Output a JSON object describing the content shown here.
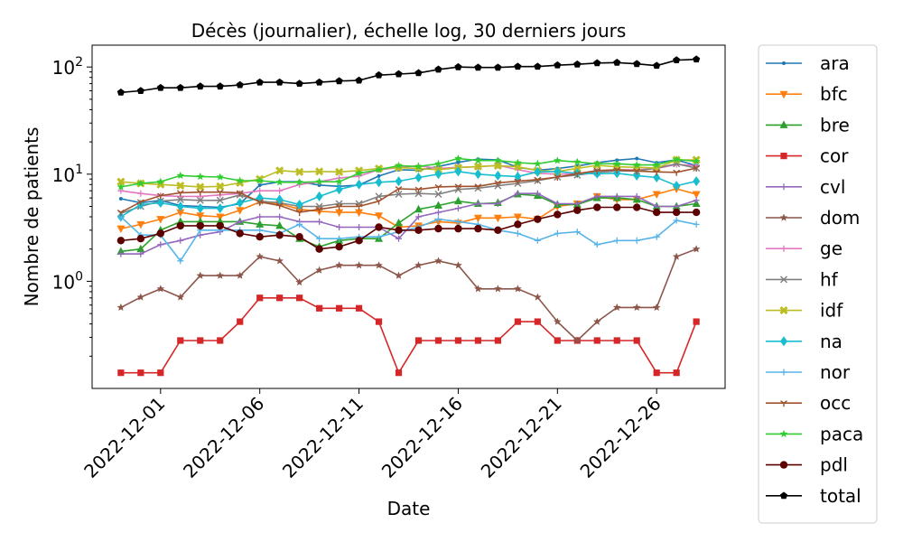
{
  "chart_data": {
    "type": "line",
    "title": "Décès (journalier), échelle log, 30 derniers jours",
    "xlabel": "Date",
    "ylabel": "Nombre de patients",
    "yscale": "log",
    "ylim": [
      0.1,
      160
    ],
    "y_ticks": [
      {
        "value": 1,
        "base": "10",
        "exp": "0"
      },
      {
        "value": 10,
        "base": "10",
        "exp": "1"
      },
      {
        "value": 100,
        "base": "10",
        "exp": "2"
      }
    ],
    "x": [
      "2022-11-29",
      "2022-11-30",
      "2022-12-01",
      "2022-12-02",
      "2022-12-03",
      "2022-12-04",
      "2022-12-05",
      "2022-12-06",
      "2022-12-07",
      "2022-12-08",
      "2022-12-09",
      "2022-12-10",
      "2022-12-11",
      "2022-12-12",
      "2022-12-13",
      "2022-12-14",
      "2022-12-15",
      "2022-12-16",
      "2022-12-17",
      "2022-12-18",
      "2022-12-19",
      "2022-12-20",
      "2022-12-21",
      "2022-12-22",
      "2022-12-23",
      "2022-12-24",
      "2022-12-25",
      "2022-12-26",
      "2022-12-27",
      "2022-12-28"
    ],
    "x_ticks": [
      "2022-12-01",
      "2022-12-06",
      "2022-12-11",
      "2022-12-16",
      "2022-12-21",
      "2022-12-26"
    ],
    "grid": false,
    "legend_position": "right-outside",
    "series": [
      {
        "name": "ara",
        "color": "#1f77b4",
        "marker": "point",
        "values": [
          5.9,
          5.4,
          5.7,
          5.1,
          5.0,
          4.9,
          5.3,
          7.9,
          8.5,
          8.5,
          7.9,
          7.7,
          7.9,
          9.6,
          11.0,
          10.9,
          11.8,
          12.9,
          13.8,
          13.6,
          11.6,
          10.9,
          11.3,
          11.9,
          12.8,
          13.5,
          14.0,
          12.8,
          13.6,
          12.0
        ]
      },
      {
        "name": "bfc",
        "color": "#ff7f0e",
        "marker": "triangle-down",
        "values": [
          3.1,
          3.4,
          3.8,
          4.4,
          4.1,
          4.0,
          4.6,
          5.5,
          5.3,
          4.7,
          4.5,
          4.4,
          4.4,
          4.1,
          3.2,
          3.3,
          3.6,
          3.5,
          3.9,
          3.9,
          4.0,
          3.8,
          5.0,
          5.3,
          6.2,
          5.8,
          5.8,
          6.5,
          7.3,
          6.5
        ]
      },
      {
        "name": "bre",
        "color": "#2ca02c",
        "marker": "triangle-up",
        "values": [
          1.9,
          2.0,
          3.0,
          3.6,
          3.6,
          3.6,
          3.6,
          3.4,
          3.3,
          2.5,
          2.1,
          2.4,
          2.5,
          2.5,
          3.5,
          4.7,
          5.1,
          5.6,
          5.3,
          5.4,
          6.5,
          6.3,
          5.2,
          5.2,
          6.0,
          6.0,
          5.8,
          5.0,
          5.0,
          5.3
        ]
      },
      {
        "name": "cor",
        "color": "#d62728",
        "marker": "square",
        "values": [
          0.14,
          0.14,
          0.14,
          0.28,
          0.28,
          0.28,
          0.42,
          0.7,
          0.7,
          0.7,
          0.56,
          0.56,
          0.56,
          0.42,
          0.14,
          0.28,
          0.28,
          0.28,
          0.28,
          0.28,
          0.42,
          0.42,
          0.28,
          0.28,
          0.28,
          0.28,
          0.28,
          0.14,
          0.14,
          0.42
        ]
      },
      {
        "name": "cvl",
        "color": "#9467bd",
        "marker": "plus",
        "values": [
          1.8,
          1.8,
          2.2,
          2.4,
          2.7,
          2.9,
          3.6,
          4.0,
          4.0,
          3.6,
          3.6,
          3.2,
          3.2,
          3.2,
          2.5,
          4.0,
          4.4,
          4.8,
          5.3,
          5.3,
          6.6,
          6.6,
          5.3,
          5.3,
          6.2,
          6.2,
          6.2,
          5.0,
          5.0,
          5.7
        ]
      },
      {
        "name": "dom",
        "color": "#8c564b",
        "marker": "star",
        "values": [
          0.57,
          0.71,
          0.85,
          0.71,
          1.13,
          1.13,
          1.13,
          1.7,
          1.55,
          0.98,
          1.27,
          1.41,
          1.41,
          1.41,
          1.13,
          1.41,
          1.55,
          1.41,
          0.85,
          0.85,
          0.85,
          0.71,
          0.42,
          0.28,
          0.42,
          0.57,
          0.57,
          0.57,
          1.7,
          2.0
        ]
      },
      {
        "name": "ge",
        "color": "#e377c2",
        "marker": "plus",
        "values": [
          7.0,
          6.6,
          6.3,
          6.2,
          6.2,
          6.4,
          6.6,
          7.0,
          7.0,
          8.0,
          8.5,
          9.2,
          9.6,
          11.0,
          11.5,
          12.0,
          11.3,
          11.6,
          11.7,
          12.1,
          11.0,
          10.2,
          10.0,
          10.1,
          10.7,
          11.0,
          11.0,
          11.3,
          12.3,
          12.0
        ]
      },
      {
        "name": "hf",
        "color": "#7f7f7f",
        "marker": "x",
        "values": [
          4.3,
          5.0,
          5.6,
          5.8,
          5.7,
          5.7,
          6.4,
          5.6,
          5.4,
          5.0,
          5.0,
          5.3,
          5.3,
          6.2,
          6.5,
          6.6,
          6.5,
          7.2,
          7.4,
          7.8,
          8.2,
          8.7,
          9.4,
          9.8,
          10.4,
          10.7,
          10.7,
          11.4,
          12.5,
          11.4
        ]
      },
      {
        "name": "idf",
        "color": "#bcbd22",
        "marker": "x-bold",
        "values": [
          8.5,
          8.2,
          8.0,
          7.8,
          7.6,
          7.7,
          8.3,
          9.0,
          10.8,
          10.5,
          10.6,
          10.5,
          10.8,
          11.3,
          11.5,
          11.3,
          11.0,
          11.5,
          11.8,
          12.0,
          11.7,
          10.8,
          10.6,
          11.3,
          12.1,
          11.7,
          11.6,
          11.4,
          13.6,
          13.6
        ]
      },
      {
        "name": "na",
        "color": "#17becf",
        "marker": "diamond",
        "values": [
          4.0,
          5.2,
          5.4,
          5.0,
          4.8,
          4.8,
          5.4,
          6.0,
          5.8,
          5.2,
          6.2,
          7.2,
          8.0,
          8.4,
          8.6,
          9.3,
          10.0,
          10.6,
          10.0,
          9.7,
          9.5,
          10.5,
          10.6,
          10.2,
          10.1,
          10.2,
          9.7,
          9.3,
          7.8,
          8.6
        ]
      },
      {
        "name": "nor",
        "color": "#56b4e9",
        "marker": "plus",
        "values": [
          4.0,
          2.7,
          2.7,
          1.55,
          3.0,
          3.0,
          3.0,
          3.0,
          2.8,
          3.4,
          2.5,
          2.5,
          2.6,
          2.6,
          2.9,
          3.2,
          3.8,
          3.6,
          3.4,
          3.0,
          2.8,
          2.4,
          2.8,
          2.9,
          2.2,
          2.4,
          2.4,
          2.6,
          3.7,
          3.4
        ]
      },
      {
        "name": "occ",
        "color": "#a0522d",
        "marker": "tri",
        "values": [
          4.4,
          5.5,
          6.3,
          6.7,
          6.8,
          6.8,
          6.7,
          5.5,
          5.1,
          4.4,
          4.7,
          5.0,
          5.0,
          5.6,
          7.3,
          7.2,
          7.6,
          7.7,
          7.7,
          8.3,
          8.6,
          8.9,
          9.4,
          10.1,
          10.8,
          11.0,
          10.7,
          10.5,
          10.4,
          11.4
        ]
      },
      {
        "name": "paca",
        "color": "#32cd32",
        "marker": "star",
        "values": [
          7.6,
          8.2,
          8.5,
          9.7,
          9.5,
          9.4,
          8.7,
          8.7,
          8.4,
          8.4,
          8.5,
          8.5,
          10.2,
          11.0,
          12.0,
          11.8,
          12.5,
          14.0,
          13.4,
          13.4,
          12.8,
          12.5,
          13.4,
          13.0,
          12.5,
          12.5,
          12.2,
          12.2,
          13.7,
          13.2
        ]
      },
      {
        "name": "pdl",
        "color": "#5c0000",
        "marker": "circle",
        "values": [
          2.4,
          2.5,
          2.8,
          3.3,
          3.3,
          3.3,
          2.8,
          2.6,
          2.7,
          2.6,
          2.0,
          2.1,
          2.4,
          3.2,
          3.0,
          3.0,
          3.1,
          3.1,
          3.1,
          3.0,
          3.4,
          3.8,
          4.2,
          4.6,
          4.9,
          4.9,
          4.9,
          4.4,
          4.4,
          4.4
        ]
      },
      {
        "name": "total",
        "color": "#000000",
        "marker": "pentagon",
        "values": [
          58,
          60,
          64,
          64,
          66,
          66,
          68,
          72,
          72,
          70,
          72,
          74,
          75,
          84,
          86,
          88,
          95,
          100,
          99,
          99,
          101,
          101,
          104,
          106,
          109,
          110,
          107,
          103,
          116,
          118
        ]
      }
    ]
  }
}
